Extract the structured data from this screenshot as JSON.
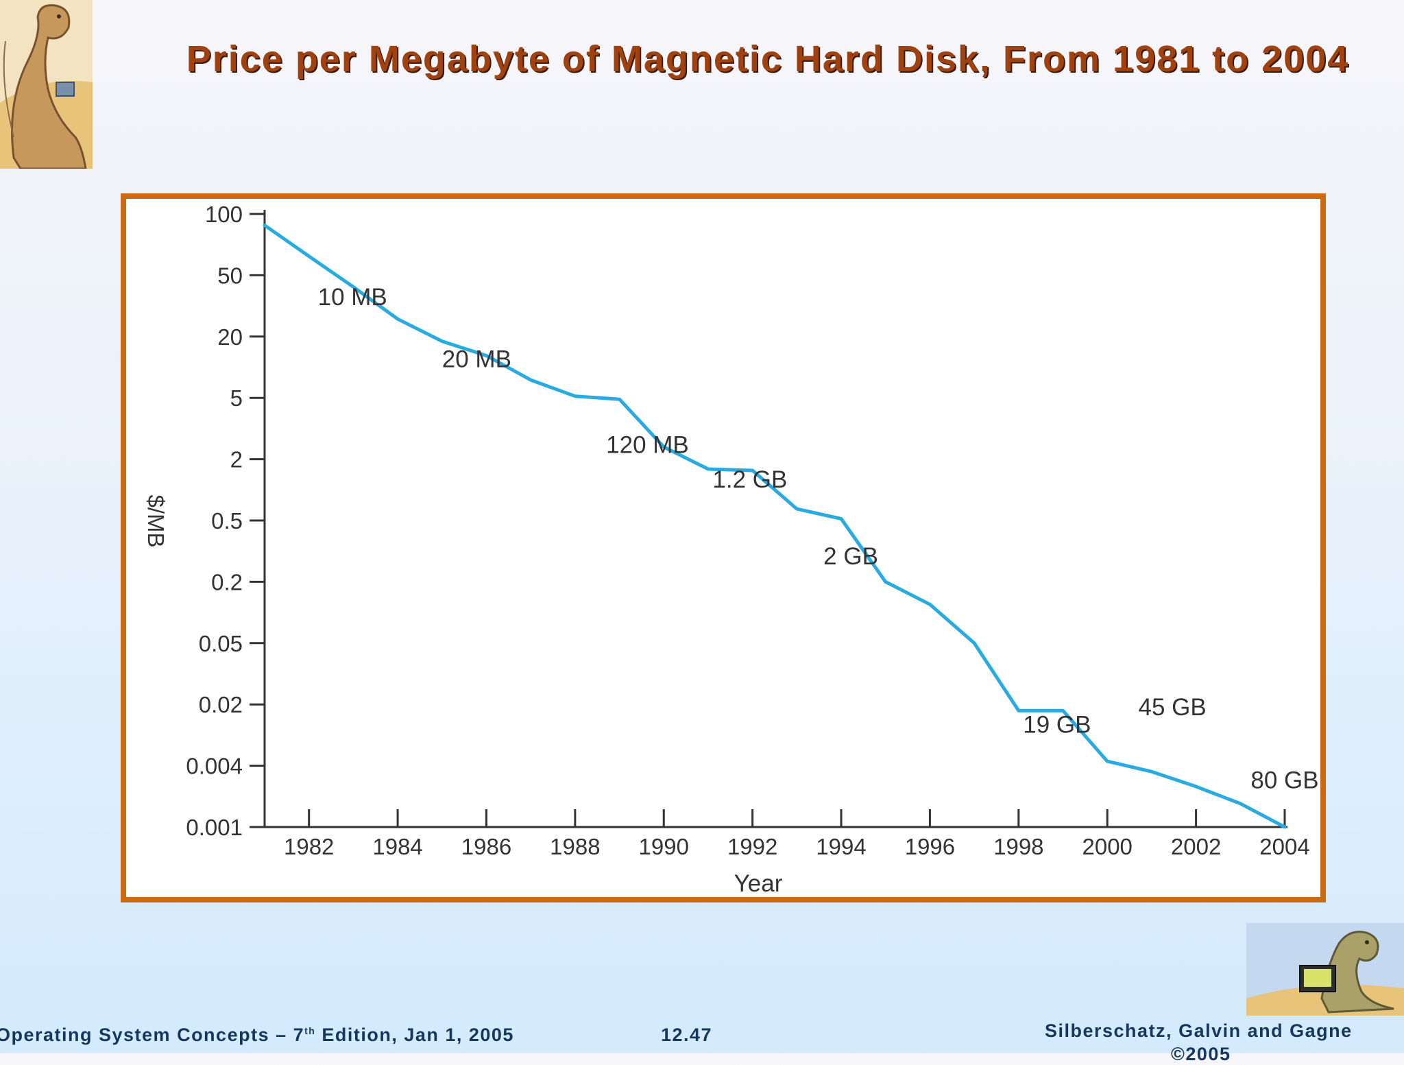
{
  "slide": {
    "title": "Price per Megabyte of Magnetic Hard Disk, From 1981 to 2004"
  },
  "footer": {
    "left_pre": "Operating System Concepts – 7",
    "left_sup": "th",
    "left_post": " Edition, Jan 1, 2005",
    "center": "12.47",
    "right": "Silberschatz, Galvin and Gagne",
    "right_line2": "©2005"
  },
  "chart_data": {
    "type": "line",
    "xlabel": "Year",
    "ylabel": "$/MB",
    "y_scale": "nonlinear (ticks evenly spaced)",
    "xlim": [
      1981,
      2004
    ],
    "x_ticks": [
      1982,
      1984,
      1986,
      1988,
      1990,
      1992,
      1994,
      1996,
      1998,
      2000,
      2002,
      2004
    ],
    "y_ticks": [
      100,
      50,
      20,
      5,
      2,
      0.5,
      0.2,
      0.05,
      0.02,
      0.004,
      0.001
    ],
    "grid": false,
    "series": [
      {
        "color": "#29abe2",
        "points": [
          {
            "x": 1981,
            "y": 88
          },
          {
            "x": 1982,
            "y": 62
          },
          {
            "x": 1983,
            "y": 42
          },
          {
            "x": 1984,
            "y": 26
          },
          {
            "x": 1985,
            "y": 18
          },
          {
            "x": 1986,
            "y": 13
          },
          {
            "x": 1987,
            "y": 7.5
          },
          {
            "x": 1988,
            "y": 5.2
          },
          {
            "x": 1989,
            "y": 4.9
          },
          {
            "x": 1990,
            "y": 2.4
          },
          {
            "x": 1991,
            "y": 1.6
          },
          {
            "x": 1992,
            "y": 1.55
          },
          {
            "x": 1993,
            "y": 0.65
          },
          {
            "x": 1994,
            "y": 0.52
          },
          {
            "x": 1995,
            "y": 0.2
          },
          {
            "x": 1996,
            "y": 0.12
          },
          {
            "x": 1997,
            "y": 0.05
          },
          {
            "x": 1998,
            "y": 0.017
          },
          {
            "x": 1999,
            "y": 0.017
          },
          {
            "x": 2000,
            "y": 0.0045
          },
          {
            "x": 2001,
            "y": 0.0035
          },
          {
            "x": 2002,
            "y": 0.0025
          },
          {
            "x": 2003,
            "y": 0.0017
          },
          {
            "x": 2004,
            "y": 0.001
          }
        ]
      }
    ],
    "annotations": [
      {
        "text": "10 MB",
        "x": 1982.2,
        "y": 32
      },
      {
        "text": "20 MB",
        "x": 1985,
        "y": 10
      },
      {
        "text": "120 MB",
        "x": 1988.7,
        "y": 2.2
      },
      {
        "text": "1.2 GB",
        "x": 1991.1,
        "y": 1.05
      },
      {
        "text": "2 GB",
        "x": 1993.6,
        "y": 0.26
      },
      {
        "text": "19 GB",
        "x": 1998.1,
        "y": 0.0095
      },
      {
        "text": "45 GB",
        "x": 2000.7,
        "y": 0.015
      },
      {
        "text": "80 GB",
        "x": 2004,
        "y": 0.0024
      }
    ]
  }
}
